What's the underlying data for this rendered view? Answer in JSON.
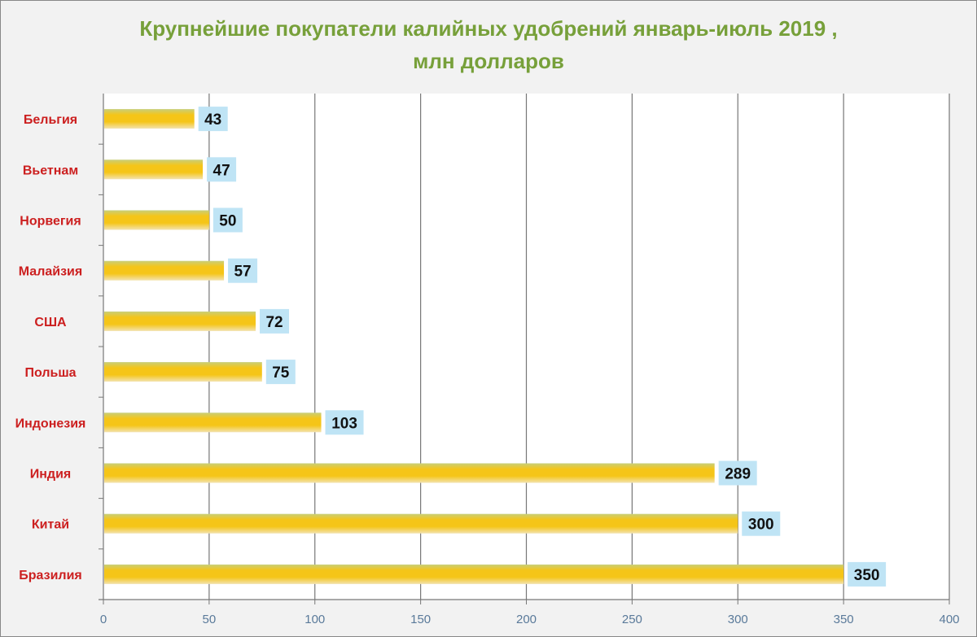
{
  "chart_data": {
    "type": "bar",
    "orientation": "horizontal",
    "title": "Крупнейшие покупатели калийных удобрений январь-июль 2019 ,",
    "subtitle": "млн долларов",
    "categories": [
      "Бельгия",
      "Вьетнам",
      "Норвегия",
      "Малайзия",
      "США",
      "Польша",
      "Индонезия",
      "Индия",
      "Китай",
      "Бразилия"
    ],
    "values": [
      43,
      47,
      50,
      57,
      72,
      75,
      103,
      289,
      300,
      350
    ],
    "xlim": [
      0,
      400
    ],
    "xticks": [
      0,
      50,
      100,
      150,
      200,
      250,
      300,
      350,
      400
    ],
    "grid": "vertical",
    "legend": "none",
    "colors": {
      "bar": "#f5c518",
      "bar_edge": "#c8cf7a",
      "label_box": "#bfe4f5",
      "category_text": "#cc1f1f",
      "title": "#77a03a",
      "tick_text": "#5a7a9a"
    }
  }
}
